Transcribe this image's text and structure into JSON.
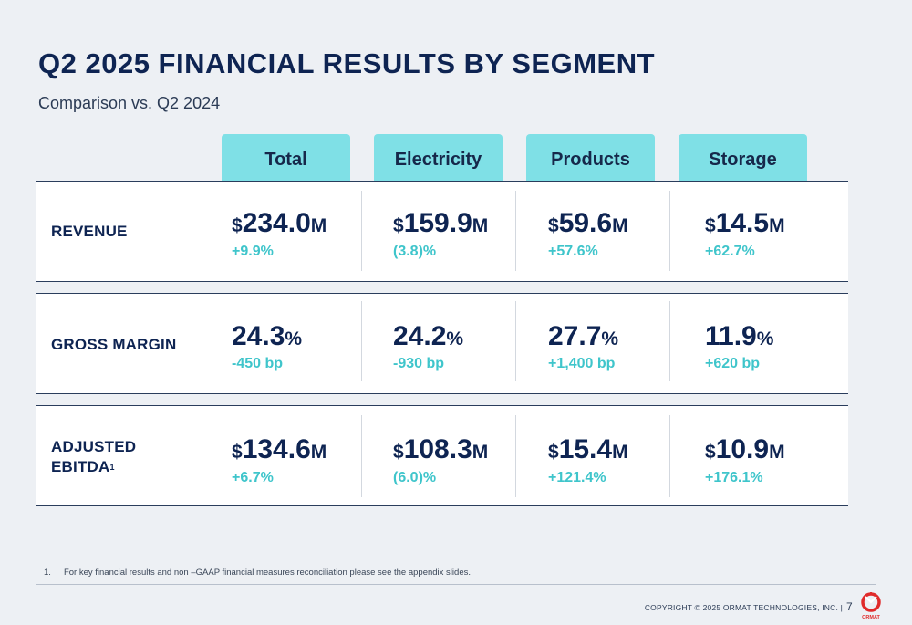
{
  "header": {
    "title": "Q2 2025 FINANCIAL RESULTS BY SEGMENT",
    "subtitle": "Comparison vs. Q2 2024"
  },
  "columns": [
    "Total",
    "Electricity",
    "Products",
    "Storage"
  ],
  "rows": [
    {
      "label": "REVENUE",
      "label_sup": "",
      "cells": [
        {
          "prefix": "$",
          "value": "234.0",
          "suffix": "M",
          "change": "+9.9%"
        },
        {
          "prefix": "$",
          "value": "159.9",
          "suffix": "M",
          "change": "(3.8)%"
        },
        {
          "prefix": "$",
          "value": "59.6",
          "suffix": "M",
          "change": "+57.6%"
        },
        {
          "prefix": "$",
          "value": "14.5",
          "suffix": "M",
          "change": "+62.7%"
        }
      ]
    },
    {
      "label": "GROSS MARGIN",
      "label_sup": "",
      "cells": [
        {
          "prefix": "",
          "value": "24.3",
          "suffix": "%",
          "change": "-450 bp"
        },
        {
          "prefix": "",
          "value": "24.2",
          "suffix": "%",
          "change": "-930 bp"
        },
        {
          "prefix": "",
          "value": "27.7",
          "suffix": "%",
          "change": "+1,400 bp"
        },
        {
          "prefix": "",
          "value": "11.9",
          "suffix": "%",
          "change": "+620 bp"
        }
      ]
    },
    {
      "label": "ADJUSTED EBITDA",
      "label_sup": "1",
      "cells": [
        {
          "prefix": "$",
          "value": "134.6",
          "suffix": "M",
          "change": "+6.7%"
        },
        {
          "prefix": "$",
          "value": "108.3",
          "suffix": "M",
          "change": "(6.0)%"
        },
        {
          "prefix": "$",
          "value": "15.4",
          "suffix": "M",
          "change": "+121.4%"
        },
        {
          "prefix": "$",
          "value": "10.9",
          "suffix": "M",
          "change": "+176.1%"
        }
      ]
    }
  ],
  "footnote": {
    "number": "1.",
    "text": "For key financial results and non –GAAP financial measures reconciliation please see the appendix slides."
  },
  "footer": {
    "copyright": "COPYRIGHT © 2025 ORMAT TECHNOLOGIES, INC.  |",
    "page_number": "7",
    "logo_text": "ORMAT"
  },
  "colors": {
    "navy": "#0e2452",
    "accent_teal": "#3fc5cb",
    "header_cyan": "#7fe0e6",
    "logo_red": "#e02b2b"
  }
}
